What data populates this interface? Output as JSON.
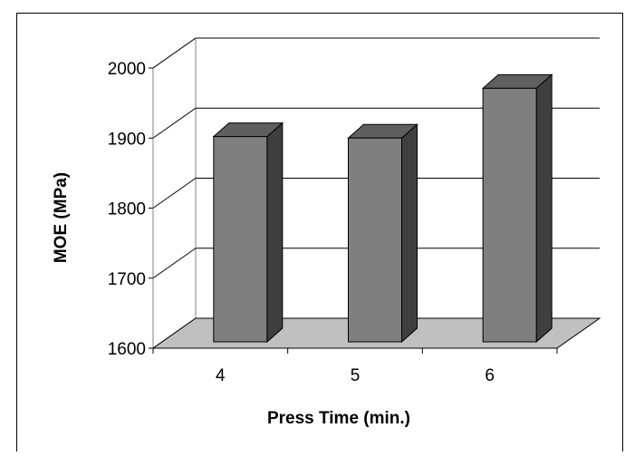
{
  "chart_data": {
    "type": "bar",
    "title": "",
    "xlabel": "Press Time (min.)",
    "ylabel": "MOE (MPa)",
    "categories": [
      "4",
      "5",
      "6"
    ],
    "values": [
      1893,
      1891,
      1962
    ],
    "ylim": [
      1600,
      2000
    ],
    "yticks": [
      "1600",
      "1700",
      "1800",
      "1900",
      "2000"
    ],
    "grid": true,
    "three_d": true,
    "colors": {
      "bar_front": "#7f7f7f",
      "bar_top": "#5f5f5f",
      "bar_side": "#3f3f3f",
      "floor": "#c0c0c0",
      "grid": "#000000"
    }
  }
}
